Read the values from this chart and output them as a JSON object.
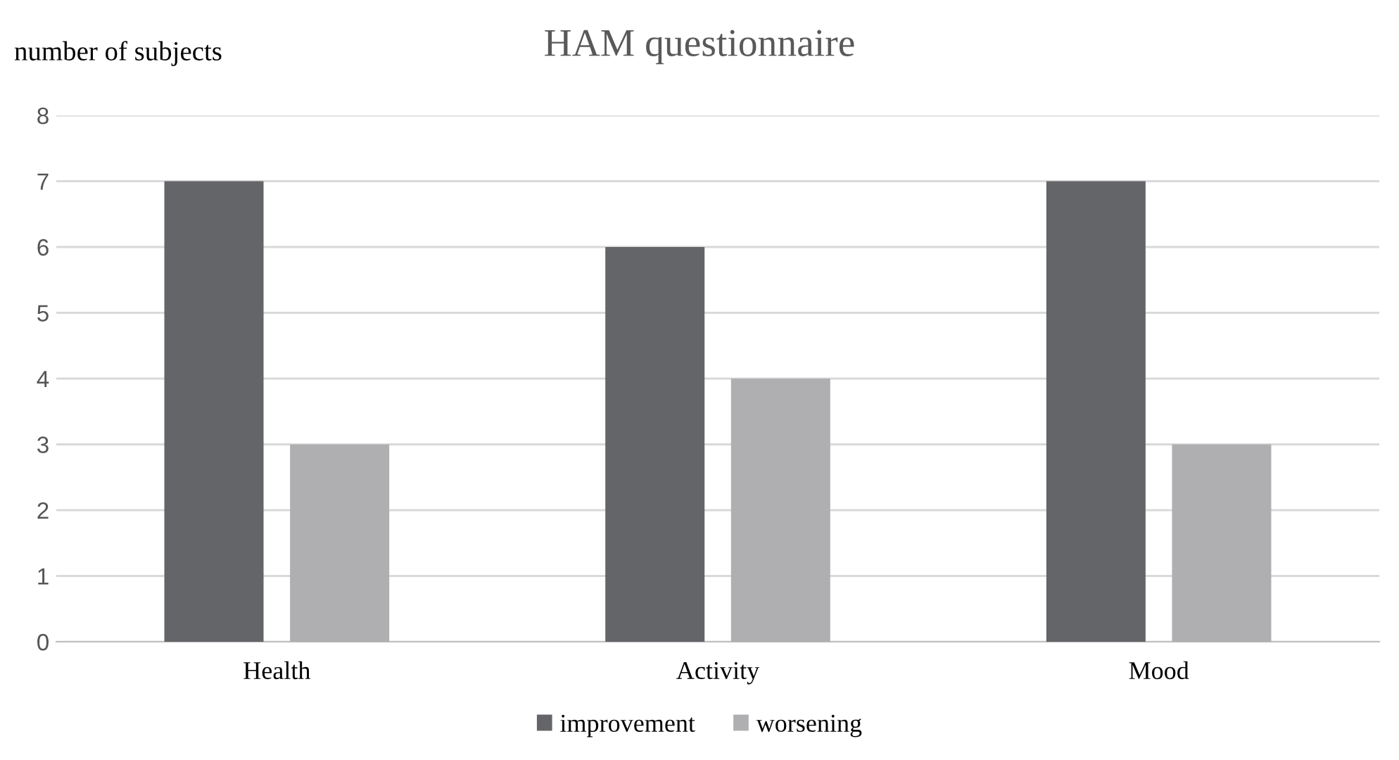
{
  "chart_data": {
    "type": "bar",
    "title": "HAM questionnaire",
    "ylabel": "number of subjects",
    "categories": [
      "Health",
      "Activity",
      "Mood"
    ],
    "series": [
      {
        "name": "improvement",
        "color": "#646569",
        "values": [
          7,
          6,
          7
        ]
      },
      {
        "name": "worsening",
        "color": "#afafb1",
        "values": [
          3,
          4,
          3
        ]
      }
    ],
    "ylim": [
      0,
      8
    ],
    "yticks": [
      0,
      1,
      2,
      3,
      4,
      5,
      6,
      7,
      8
    ],
    "grid": "y",
    "legend": "bottom"
  }
}
